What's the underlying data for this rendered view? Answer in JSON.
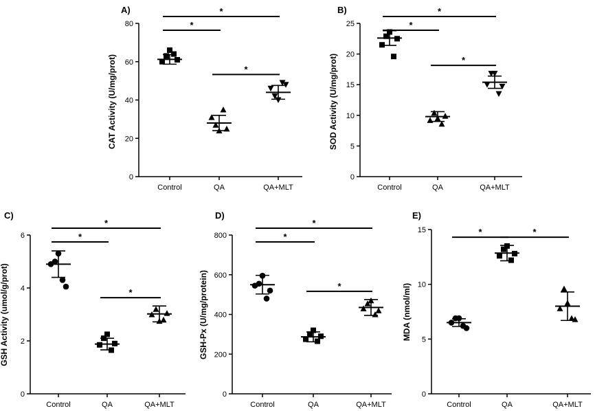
{
  "chart_data": [
    {
      "type": "scatter",
      "panel": "A)",
      "ylabel": "CAT  Activity (U/mg/prot)",
      "ylim": [
        0,
        80
      ],
      "yticks": [
        "0",
        "20",
        "40",
        "60",
        "80"
      ],
      "categories": [
        "Control",
        "QA",
        "QA+MLT"
      ],
      "markers": [
        "square",
        "triangle-up",
        "triangle-down"
      ],
      "points": [
        [
          60,
          63,
          66,
          64,
          61
        ],
        [
          31,
          27,
          24,
          35,
          25
        ],
        [
          46,
          42,
          40,
          49,
          48
        ]
      ],
      "mean": [
        61.2,
        28.0,
        44.0
      ],
      "error": [
        2.5,
        4.0,
        3.6
      ],
      "significance": [
        {
          "from": 0,
          "to": 2,
          "label": "*"
        },
        {
          "from": 0,
          "to": 1,
          "label": "*"
        },
        {
          "from": 1,
          "to": 2,
          "label": "*"
        }
      ]
    },
    {
      "type": "scatter",
      "panel": "B)",
      "ylabel": "SOD Activity (U/mg/prot)",
      "ylim": [
        0,
        25
      ],
      "yticks": [
        "0",
        "5",
        "10",
        "15",
        "20",
        "25"
      ],
      "categories": [
        "Control",
        "QA",
        "QA+MLT"
      ],
      "markers": [
        "square",
        "triangle-up",
        "triangle-down"
      ],
      "points": [
        [
          21.5,
          22.9,
          23.6,
          19.6,
          22.5
        ],
        [
          9.2,
          10.4,
          9.5,
          8.6,
          9.9
        ],
        [
          15.0,
          16.8,
          16.8,
          13.5,
          14.7
        ]
      ],
      "mean": [
        22.6,
        9.8,
        15.4
      ],
      "error": [
        1.2,
        0.8,
        1.0
      ],
      "significance": [
        {
          "from": 0,
          "to": 2,
          "label": "*"
        },
        {
          "from": 0,
          "to": 1,
          "label": "*"
        },
        {
          "from": 1,
          "to": 2,
          "label": "*"
        }
      ]
    },
    {
      "type": "scatter",
      "panel": "C)",
      "ylabel": "GSH Activity (umol/g/prot)",
      "ylim": [
        0,
        6
      ],
      "yticks": [
        "0",
        "2",
        "4",
        "6"
      ],
      "categories": [
        "Control",
        "QA",
        "QA+MLT"
      ],
      "markers": [
        "circle",
        "square",
        "triangle-up"
      ],
      "points": [
        [
          4.9,
          5.0,
          5.3,
          4.3,
          4.05
        ],
        [
          1.85,
          2.1,
          2.25,
          1.65,
          1.9
        ],
        [
          3.0,
          3.2,
          2.75,
          2.8,
          3.05
        ]
      ],
      "mean": [
        4.9,
        1.88,
        3.02
      ],
      "error": [
        0.5,
        0.22,
        0.3
      ],
      "significance": [
        {
          "from": 0,
          "to": 2,
          "label": "*"
        },
        {
          "from": 0,
          "to": 1,
          "label": "*"
        },
        {
          "from": 1,
          "to": 2,
          "label": "*"
        }
      ]
    },
    {
      "type": "scatter",
      "panel": "D)",
      "ylabel": "GSH-Px (U/mg/protein)",
      "ylim": [
        0,
        800
      ],
      "yticks": [
        "0",
        "200",
        "400",
        "600",
        "800"
      ],
      "categories": [
        "Control",
        "QA",
        "QA+MLT"
      ],
      "markers": [
        "circle",
        "square",
        "triangle-up"
      ],
      "points": [
        [
          545,
          555,
          595,
          480,
          520
        ],
        [
          275,
          300,
          320,
          265,
          290
        ],
        [
          430,
          455,
          470,
          400,
          420
        ]
      ],
      "mean": [
        550,
        287,
        435
      ],
      "error": [
        47,
        25,
        40
      ],
      "significance": [
        {
          "from": 0,
          "to": 2,
          "label": "*"
        },
        {
          "from": 0,
          "to": 1,
          "label": "*"
        },
        {
          "from": 1,
          "to": 2,
          "label": "*"
        }
      ]
    },
    {
      "type": "scatter",
      "panel": "E)",
      "ylabel": "MDA (nmol/ml)",
      "ylim": [
        0,
        15
      ],
      "yticks": [
        "0",
        "5",
        "10",
        "15"
      ],
      "categories": [
        "Control",
        "QA",
        "QA+MLT"
      ],
      "markers": [
        "circle",
        "square",
        "triangle-up"
      ],
      "points": [
        [
          6.5,
          6.9,
          6.9,
          6.2,
          6.0
        ],
        [
          12.6,
          13.2,
          13.5,
          12.2,
          12.8
        ],
        [
          7.8,
          9.6,
          8.3,
          6.9,
          6.8
        ]
      ],
      "mean": [
        6.5,
        12.85,
        8.0
      ],
      "error": [
        0.35,
        0.7,
        1.3
      ],
      "significance": [
        {
          "from": 0,
          "to": 1,
          "label": "*"
        },
        {
          "from": 1,
          "to": 2,
          "label": "*"
        }
      ]
    }
  ]
}
